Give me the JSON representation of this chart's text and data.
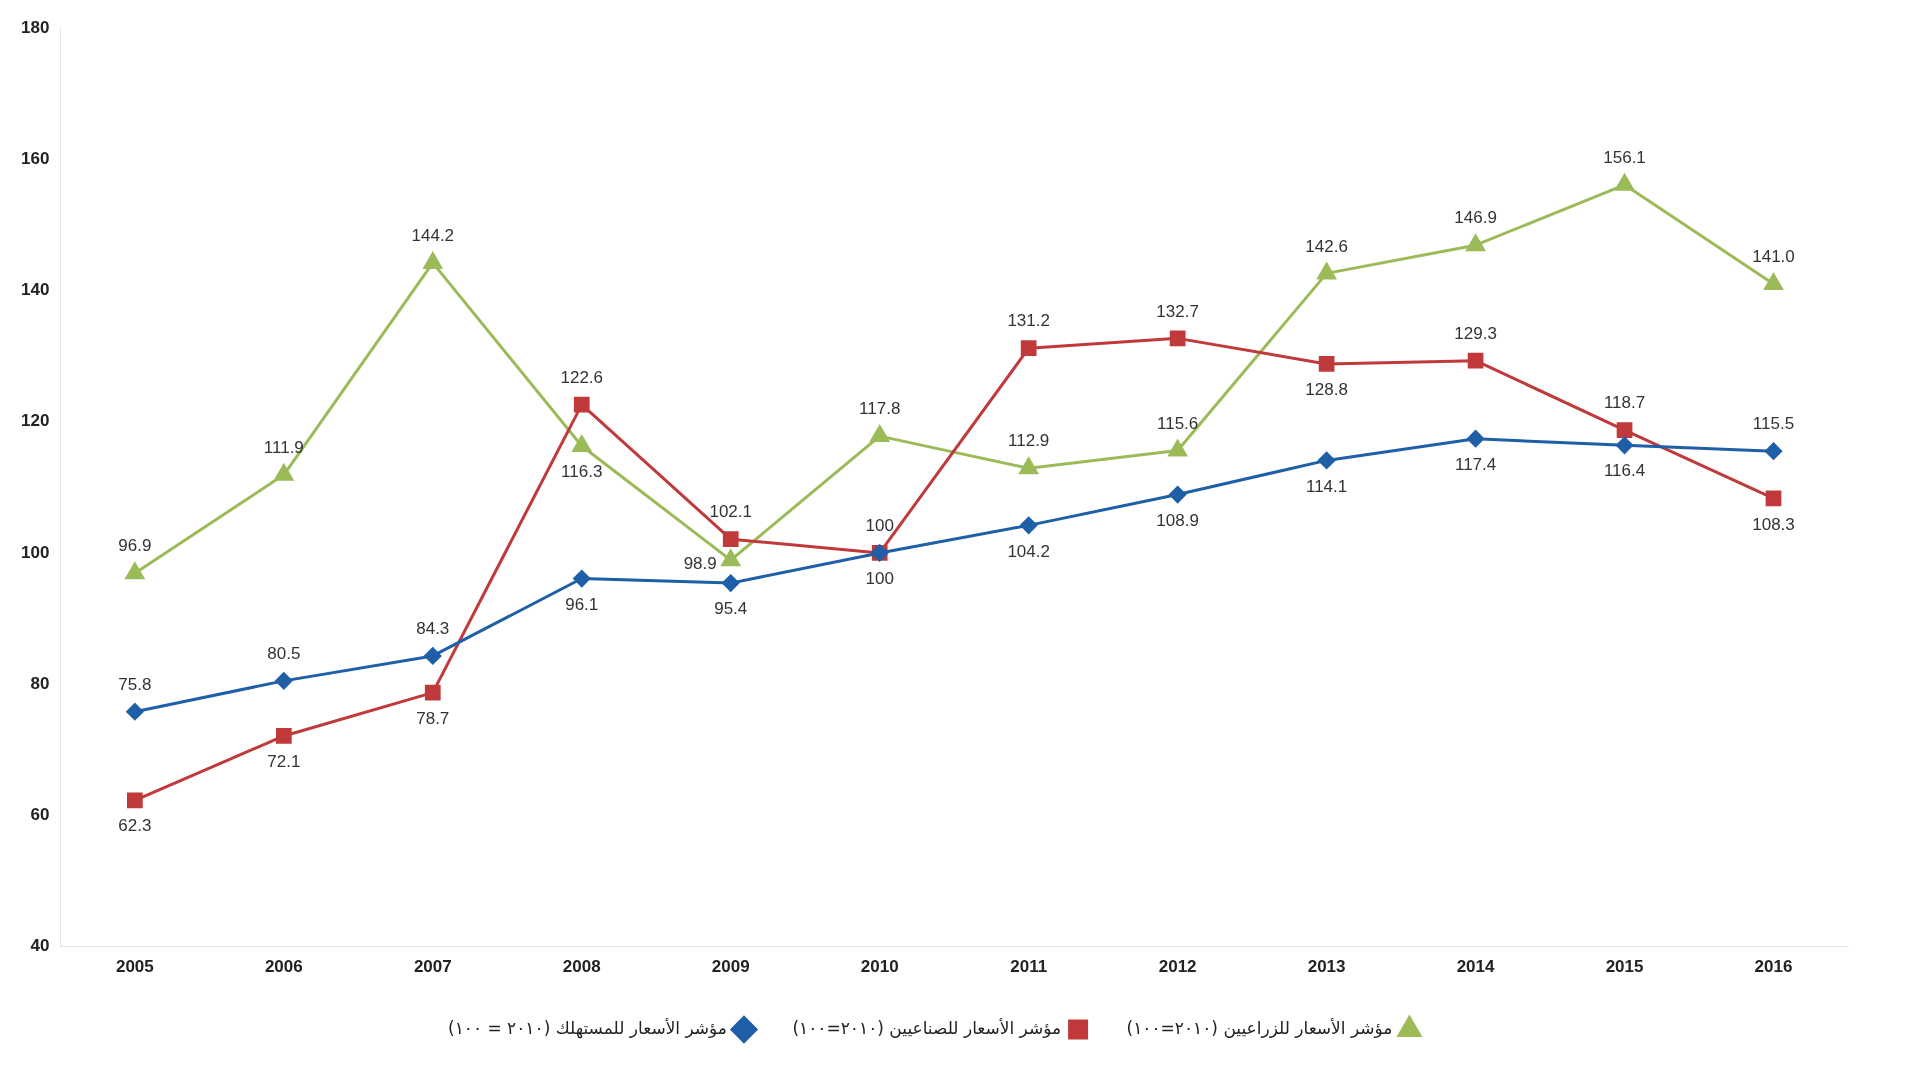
{
  "chart_data": {
    "type": "line",
    "categories": [
      "2005",
      "2006",
      "2007",
      "2008",
      "2009",
      "2010",
      "2011",
      "2012",
      "2013",
      "2014",
      "2015",
      "2016"
    ],
    "series": [
      {
        "name": "مؤشر الأسعار للمستهلك (٢٠١٠ = ١٠٠)",
        "color": "#1f5fa8",
        "marker": "diamond",
        "values": [
          75.8,
          80.5,
          84.3,
          96.1,
          95.4,
          100,
          104.2,
          108.9,
          114.1,
          117.4,
          116.4,
          115.5
        ],
        "value_labels": [
          "75.8",
          "80.5",
          "84.3",
          "96.1",
          "95.4",
          "100",
          "104.2",
          "108.9",
          "114.1",
          "117.4",
          "116.4",
          "115.5"
        ]
      },
      {
        "name": "مؤشر الأسعار للصناعيين (٢٠١٠=١٠٠)",
        "color": "#c0393b",
        "marker": "square",
        "values": [
          62.3,
          72.1,
          78.7,
          122.6,
          102.1,
          100,
          131.2,
          132.7,
          128.8,
          129.3,
          118.7,
          108.3
        ],
        "value_labels": [
          "62.3",
          "72.1",
          "78.7",
          "122.6",
          "102.1",
          "100",
          "131.2",
          "132.7",
          "128.8",
          "129.3",
          "118.7",
          "108.3"
        ]
      },
      {
        "name": "مؤشر الأسعار للزراعيين (٢٠١٠=١٠٠)",
        "color": "#9bbb59",
        "marker": "triangle",
        "values": [
          96.9,
          111.9,
          144.2,
          116.3,
          98.9,
          117.8,
          112.9,
          115.6,
          142.6,
          146.9,
          156.1,
          141.0
        ],
        "value_labels": [
          "96.9",
          "111.9",
          "144.2",
          "116.3",
          "98.9",
          "117.8",
          "112.9",
          "115.6",
          "142.6",
          "146.9",
          "156.1",
          "141.0"
        ]
      }
    ],
    "ylim": [
      40,
      180
    ],
    "yticks": [
      40,
      60,
      80,
      100,
      120,
      140,
      160,
      180
    ],
    "grid": false,
    "legend": "bottom"
  }
}
